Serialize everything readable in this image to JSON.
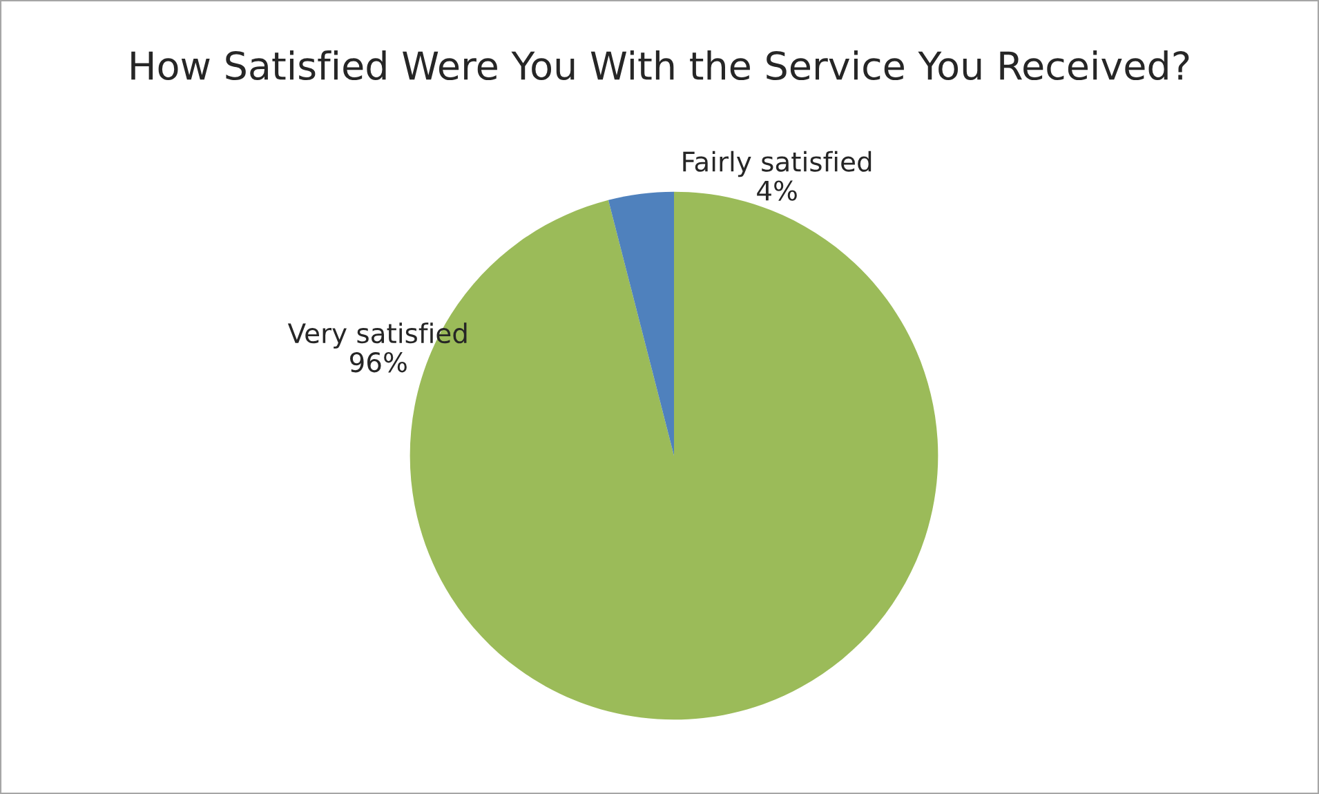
{
  "chart_data": {
    "type": "pie",
    "title": "How Satisfied Were You With the Service You Received?",
    "categories": [
      "Very satisfied",
      "Fairly satisfied"
    ],
    "values": [
      96,
      4
    ],
    "colors": [
      "#9bbb59",
      "#4f81bd"
    ],
    "value_labels": [
      "96%",
      "4%"
    ],
    "legend": false
  }
}
